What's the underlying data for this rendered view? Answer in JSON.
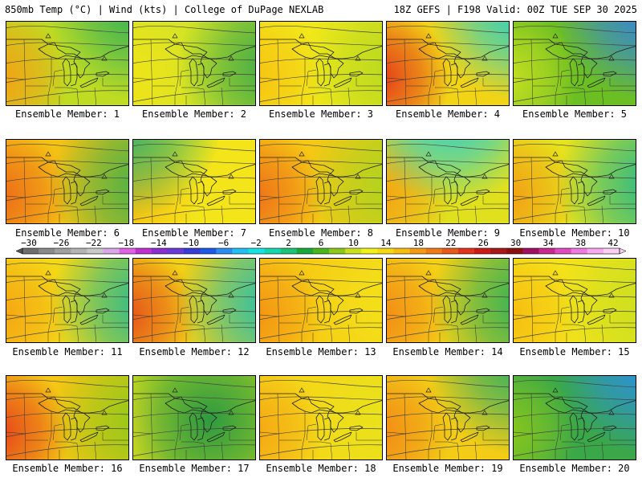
{
  "header": {
    "left_title": "850mb Temp (°C) | Wind (kts) | College of DuPage NEXLAB",
    "right_title": "18Z GEFS | F198 Valid: 00Z TUE SEP 30 2025"
  },
  "colorbar": {
    "labels": [
      "-30",
      "-26",
      "-22",
      "-18",
      "-14",
      "-10",
      "-6",
      "-2",
      "2",
      "6",
      "10",
      "14",
      "18",
      "22",
      "26",
      "30",
      "34",
      "38",
      "42"
    ],
    "colors": [
      "#6e6e6e",
      "#8a8a8a",
      "#a0a0a0",
      "#b4b4b4",
      "#c8c8c8",
      "#d9a6e8",
      "#e060e6",
      "#c030d0",
      "#8a2fd0",
      "#6a3ad8",
      "#3a3ad6",
      "#1e5ae8",
      "#2e8cf0",
      "#22bff0",
      "#19e2e2",
      "#16d6b0",
      "#1cc27a",
      "#1aa83a",
      "#4ab51e",
      "#8cc81a",
      "#c8e020",
      "#f2f01a",
      "#f6d814",
      "#f7bd10",
      "#f59a14",
      "#f07a18",
      "#e85a1a",
      "#e0321c",
      "#cc1a1a",
      "#a81818",
      "#8c1010",
      "#a01060",
      "#c82890",
      "#e04cc0",
      "#f07ae0",
      "#f8a8ee",
      "#fcd0f4"
    ]
  },
  "panels": [
    {
      "label": "Ensemble Member: 1",
      "base": "#bfdc22",
      "cool": "#2fb05a",
      "coolSide": "ne",
      "hot": "#f4a014"
    },
    {
      "label": "Ensemble Member: 2",
      "base": "#d6e424",
      "cool": "#3aa848",
      "coolSide": "e",
      "hot": "#f2e418"
    },
    {
      "label": "Ensemble Member: 3",
      "base": "#f2e81a",
      "cool": "#b4d820",
      "coolSide": "e",
      "hot": "#f7c212"
    },
    {
      "label": "Ensemble Member: 4",
      "base": "#f2d416",
      "cool": "#1fd0cf",
      "coolSide": "ne",
      "hot": "#e43a1a"
    },
    {
      "label": "Ensemble Member: 5",
      "base": "#6cbf22",
      "cool": "#2f7fe8",
      "coolSide": "ne",
      "hot": "#c8e020"
    },
    {
      "label": "Ensemble Member: 6",
      "base": "#f5c214",
      "cool": "#3fb04a",
      "coolSide": "e",
      "hot": "#ec6a18"
    },
    {
      "label": "Ensemble Member: 7",
      "base": "#f4e41a",
      "cool": "#2fae6c",
      "coolSide": "nw",
      "hot": "#f7bd10"
    },
    {
      "label": "Ensemble Member: 8",
      "base": "#f6c814",
      "cool": "#a8d420",
      "coolSide": "e",
      "hot": "#ee7018"
    },
    {
      "label": "Ensemble Member: 9",
      "base": "#e0e01e",
      "cool": "#22cfd6",
      "coolSide": "n",
      "hot": "#f5a214"
    },
    {
      "label": "Ensemble Member: 10",
      "base": "#e6e21c",
      "cool": "#22b88a",
      "coolSide": "e",
      "hot": "#f39e14"
    },
    {
      "label": "Ensemble Member: 11",
      "base": "#f4d816",
      "cool": "#22b890",
      "coolSide": "e",
      "hot": "#f5a414"
    },
    {
      "label": "Ensemble Member: 12",
      "base": "#f2d016",
      "cool": "#22bfae",
      "coolSide": "e",
      "hot": "#e6501a"
    },
    {
      "label": "Ensemble Member: 13",
      "base": "#f6cc14",
      "cool": "#f2e41a",
      "coolSide": "e",
      "hot": "#f39214"
    },
    {
      "label": "Ensemble Member: 14",
      "base": "#f4d016",
      "cool": "#28b05a",
      "coolSide": "e",
      "hot": "#f28a16"
    },
    {
      "label": "Ensemble Member: 15",
      "base": "#f4e21a",
      "cool": "#c8e020",
      "coolSide": "e",
      "hot": "#f7bc10"
    },
    {
      "label": "Ensemble Member: 16",
      "base": "#f5c614",
      "cool": "#8cc81a",
      "coolSide": "e",
      "hot": "#e6441a"
    },
    {
      "label": "Ensemble Member: 17",
      "base": "#b8d820",
      "cool": "#2e9a40",
      "coolSide": "c",
      "hot": "#f2e41a"
    },
    {
      "label": "Ensemble Member: 18",
      "base": "#f4d818",
      "cool": "#e8e41c",
      "coolSide": "e",
      "hot": "#f5a614"
    },
    {
      "label": "Ensemble Member: 19",
      "base": "#f2cc16",
      "cool": "#2aae66",
      "coolSide": "ne",
      "hot": "#f28a16"
    },
    {
      "label": "Ensemble Member: 20",
      "base": "#3aa848",
      "cool": "#2a8ee8",
      "coolSide": "ne",
      "hot": "#8cc81a"
    }
  ]
}
